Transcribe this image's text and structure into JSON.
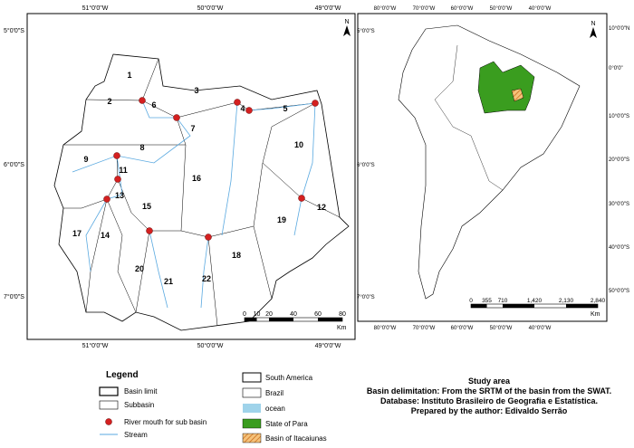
{
  "left_map": {
    "lon_labels": [
      "51°0'0\"W",
      "50°0'0\"W",
      "49°0'0\"W"
    ],
    "lat_labels": [
      "5°0'0\"S",
      "6°0'0\"S",
      "7°0'0\"S"
    ],
    "subbasins": [
      "1",
      "2",
      "3",
      "4",
      "5",
      "6",
      "7",
      "8",
      "9",
      "10",
      "11",
      "12",
      "13",
      "14",
      "15",
      "16",
      "17",
      "18",
      "19",
      "20",
      "21",
      "22"
    ],
    "north": "N",
    "scale": {
      "ticks": [
        "0",
        "10",
        "20",
        "40",
        "60",
        "80"
      ],
      "unit": "Km"
    }
  },
  "right_map": {
    "lon_labels": [
      "80°0'0\"W",
      "70°0'0\"W",
      "60°0'0\"W",
      "50°0'0\"W",
      "40°0'0\"W"
    ],
    "lat_labels": [
      "10°0'0\"N",
      "0°0'0\"",
      "10°0'0\"S",
      "20°0'0\"S",
      "30°0'0\"S",
      "40°0'0\"S",
      "50°0'0\"S"
    ],
    "north": "N",
    "scale": {
      "ticks": [
        "0",
        "355",
        "710",
        "1,420",
        "2,130",
        "2,840"
      ],
      "unit": "Km"
    }
  },
  "legend": {
    "title": "Legend",
    "items": [
      "Basin limit",
      "Subbasin",
      "River mouth for sub basin",
      "Stream",
      "South America",
      "Brazil",
      "ocean",
      "State of Para",
      "Basin of Itacaiunas"
    ]
  },
  "notes": [
    "Study area",
    "Basin delimitation: From the SRTM of the basin from the SWAT.",
    "Database: Instituto Brasileiro de Geografia e Estatística.",
    "Prepared by the author:  Edivaldo Serrão"
  ]
}
